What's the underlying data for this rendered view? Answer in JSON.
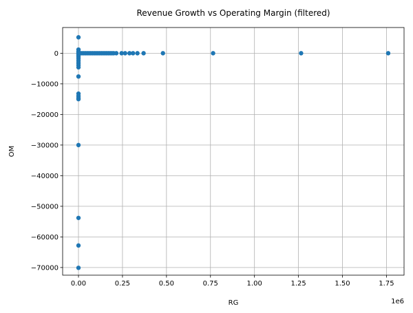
{
  "chart_data": {
    "type": "scatter",
    "title": "Revenue Growth vs Operating Margin (filtered)",
    "xlabel": "RG",
    "ylabel": "OM",
    "x_offset_label": "1e6",
    "xlim": [
      -90000,
      1850000
    ],
    "ylim": [
      -72500,
      8400
    ],
    "x_ticks": [
      0,
      250000,
      500000,
      750000,
      1000000,
      1250000,
      1500000,
      1750000
    ],
    "x_tick_labels": [
      "0.00",
      "0.25",
      "0.50",
      "0.75",
      "1.00",
      "1.25",
      "1.50",
      "1.75"
    ],
    "y_ticks": [
      0,
      -10000,
      -20000,
      -30000,
      -40000,
      -50000,
      -60000,
      -70000
    ],
    "y_tick_labels": [
      "0",
      "−10000",
      "−20000",
      "−30000",
      "−40000",
      "−50000",
      "−60000",
      "−70000"
    ],
    "grid": true,
    "marker_color": "#1f77b4",
    "points": [
      {
        "x": 0,
        "y": 5200
      },
      {
        "x": 0,
        "y": 1200
      },
      {
        "x": 0,
        "y": 600
      },
      {
        "x": 0,
        "y": 300
      },
      {
        "x": 0,
        "y": 0
      },
      {
        "x": 0,
        "y": -300
      },
      {
        "x": 0,
        "y": -700
      },
      {
        "x": 0,
        "y": -1200
      },
      {
        "x": 0,
        "y": -1800
      },
      {
        "x": 0,
        "y": -2500
      },
      {
        "x": 0,
        "y": -3200
      },
      {
        "x": 0,
        "y": -3900
      },
      {
        "x": 0,
        "y": -4600
      },
      {
        "x": 0,
        "y": -7600
      },
      {
        "x": 0,
        "y": -13200
      },
      {
        "x": 0,
        "y": -14000
      },
      {
        "x": 0,
        "y": -14600
      },
      {
        "x": 0,
        "y": -15000
      },
      {
        "x": 0,
        "y": -30000
      },
      {
        "x": 0,
        "y": -53800
      },
      {
        "x": 0,
        "y": -62800
      },
      {
        "x": 0,
        "y": -70100
      },
      {
        "x": 10000,
        "y": 0
      },
      {
        "x": 20000,
        "y": 0
      },
      {
        "x": 30000,
        "y": 0
      },
      {
        "x": 40000,
        "y": 0
      },
      {
        "x": 50000,
        "y": 0
      },
      {
        "x": 60000,
        "y": 0
      },
      {
        "x": 70000,
        "y": 0
      },
      {
        "x": 80000,
        "y": 0
      },
      {
        "x": 90000,
        "y": 0
      },
      {
        "x": 100000,
        "y": 0
      },
      {
        "x": 110000,
        "y": 0
      },
      {
        "x": 120000,
        "y": 0
      },
      {
        "x": 130000,
        "y": 0
      },
      {
        "x": 140000,
        "y": 0
      },
      {
        "x": 150000,
        "y": 0
      },
      {
        "x": 160000,
        "y": 0
      },
      {
        "x": 170000,
        "y": 0
      },
      {
        "x": 180000,
        "y": 0
      },
      {
        "x": 190000,
        "y": 0
      },
      {
        "x": 200000,
        "y": 0
      },
      {
        "x": 215000,
        "y": 0
      },
      {
        "x": 245000,
        "y": 0
      },
      {
        "x": 265000,
        "y": 0
      },
      {
        "x": 290000,
        "y": 0
      },
      {
        "x": 310000,
        "y": 0
      },
      {
        "x": 335000,
        "y": 0
      },
      {
        "x": 370000,
        "y": 0
      },
      {
        "x": 480000,
        "y": 0
      },
      {
        "x": 765000,
        "y": 0
      },
      {
        "x": 1265000,
        "y": 0
      },
      {
        "x": 1760000,
        "y": 0
      }
    ]
  }
}
